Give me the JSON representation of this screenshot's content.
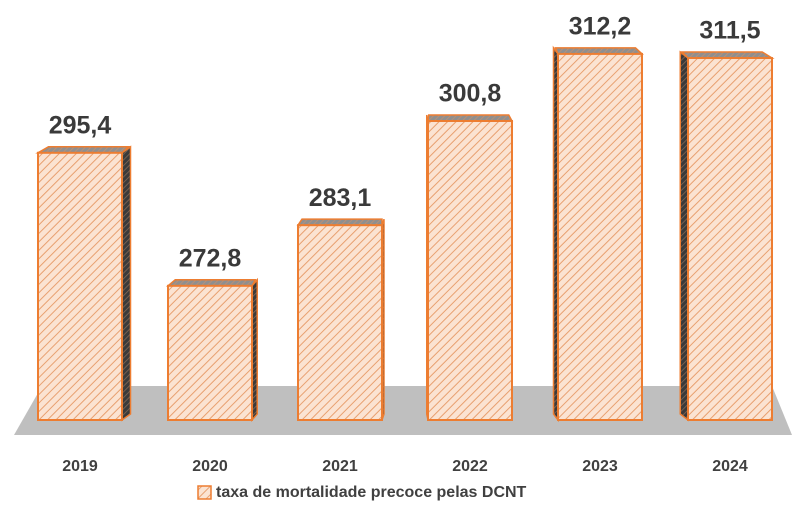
{
  "chart_data": {
    "type": "bar3d",
    "categories": [
      "2019",
      "2020",
      "2021",
      "2022",
      "2023",
      "2024"
    ],
    "series": [
      {
        "name": "taxa de mortalidade precoce pelas DCNT",
        "color": "#ed7d31",
        "values": [
          295.4,
          272.8,
          283.1,
          300.8,
          312.2,
          311.5
        ],
        "value_labels": [
          "295,4",
          "272,8",
          "283,1",
          "300,8",
          "312,2",
          "311,5"
        ]
      }
    ],
    "ylim": [
      250,
      320
    ],
    "legend": "bottom"
  }
}
